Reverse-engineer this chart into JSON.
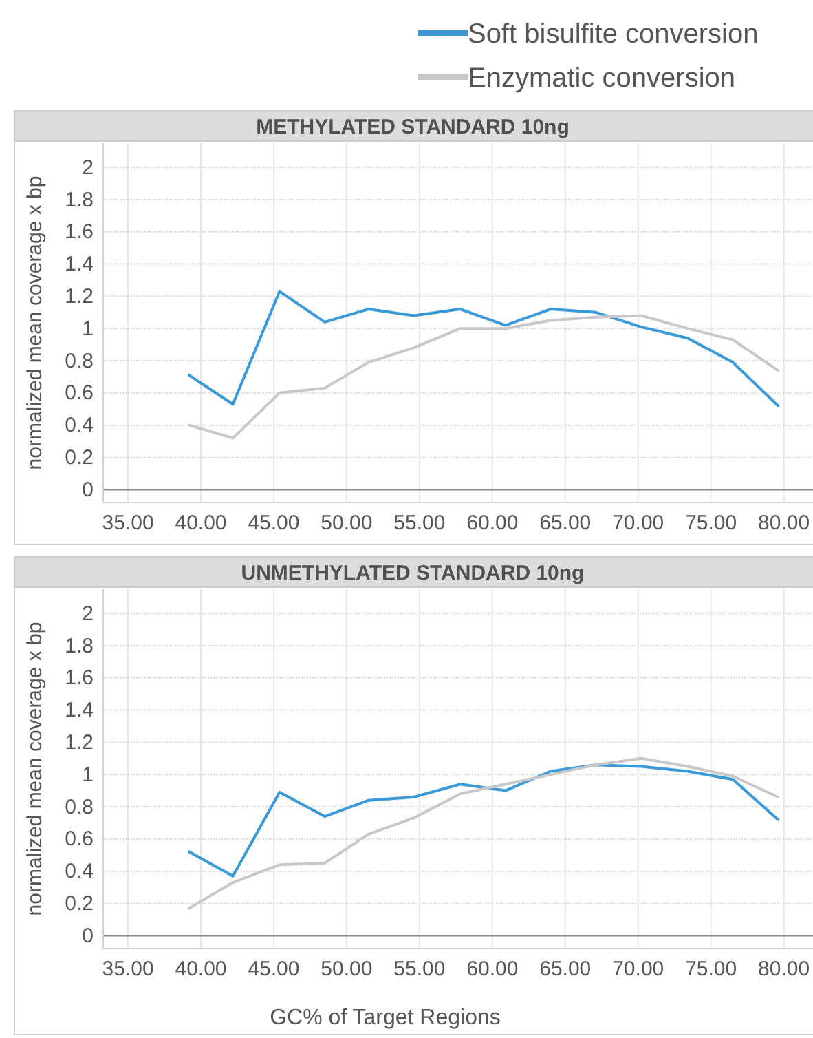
{
  "chart_data": [
    {
      "type": "line",
      "title": "METHYLATED STANDARD 10ng",
      "ylabel": "normalized mean coverage x bp",
      "x": [
        39.2,
        42.2,
        45.4,
        48.5,
        51.5,
        54.6,
        57.8,
        60.9,
        64.0,
        67.1,
        70.2,
        73.4,
        76.5,
        79.6
      ],
      "series": [
        {
          "name": "Soft bisulfite conversion",
          "color": "#3a9ad9",
          "values": [
            0.71,
            0.53,
            1.23,
            1.04,
            1.12,
            1.08,
            1.12,
            1.02,
            1.12,
            1.1,
            1.01,
            0.94,
            0.79,
            0.52
          ]
        },
        {
          "name": "Enzymatic conversion",
          "color": "#c8c8c8",
          "values": [
            0.4,
            0.32,
            0.6,
            0.63,
            0.79,
            0.88,
            1.0,
            1.0,
            1.05,
            1.07,
            1.08,
            1.0,
            0.93,
            0.74
          ]
        }
      ],
      "xlim": [
        33.3,
        82
      ],
      "xticks": [
        {
          "value": 35,
          "label": "35.00"
        },
        {
          "value": 40,
          "label": "40.00"
        },
        {
          "value": 45,
          "label": "45.00"
        },
        {
          "value": 50,
          "label": "50.00"
        },
        {
          "value": 55,
          "label": "55.00"
        },
        {
          "value": 60,
          "label": "60.00"
        },
        {
          "value": 65,
          "label": "65.00"
        },
        {
          "value": 70,
          "label": "70.00"
        },
        {
          "value": 75,
          "label": "75.00"
        },
        {
          "value": 80,
          "label": "80.00"
        }
      ],
      "ylim": [
        -0.08,
        2.15
      ],
      "yticks": [
        0,
        0.2,
        0.4,
        0.6,
        0.8,
        1,
        1.2,
        1.4,
        1.6,
        1.8,
        2
      ],
      "grid": true,
      "legend": "top right",
      "marker": "none"
    },
    {
      "type": "line",
      "title": "UNMETHYLATED STANDARD 10ng",
      "xlabel": "GC% of Target Regions",
      "ylabel": "normalized mean coverage x bp",
      "x": [
        39.2,
        42.2,
        45.4,
        48.5,
        51.5,
        54.6,
        57.8,
        60.9,
        64.0,
        67.1,
        70.2,
        73.4,
        76.5,
        79.6
      ],
      "series": [
        {
          "color": "#3a9ad9",
          "values": [
            0.52,
            0.37,
            0.89,
            0.74,
            0.84,
            0.86,
            0.94,
            0.9,
            1.02,
            1.06,
            1.05,
            1.02,
            0.97,
            0.72
          ]
        },
        {
          "color": "#c8c8c8",
          "values": [
            0.17,
            0.33,
            0.44,
            0.45,
            0.63,
            0.73,
            0.88,
            0.94,
            1.0,
            1.06,
            1.1,
            1.05,
            0.99,
            0.86
          ]
        }
      ],
      "xlim": [
        33.3,
        82
      ],
      "xticks": [
        {
          "value": 35,
          "label": "35.00"
        },
        {
          "value": 40,
          "label": "40.00"
        },
        {
          "value": 45,
          "label": "45.00"
        },
        {
          "value": 50,
          "label": "50.00"
        },
        {
          "value": 55,
          "label": "55.00"
        },
        {
          "value": 60,
          "label": "60.00"
        },
        {
          "value": 65,
          "label": "65.00"
        },
        {
          "value": 70,
          "label": "70.00"
        },
        {
          "value": 75,
          "label": "75.00"
        },
        {
          "value": 80,
          "label": "80.00"
        }
      ],
      "ylim": [
        -0.08,
        2.15
      ],
      "yticks": [
        0,
        0.2,
        0.4,
        0.6,
        0.8,
        1,
        1.2,
        1.4,
        1.6,
        1.8,
        2
      ],
      "grid": true,
      "marker": "none"
    }
  ]
}
